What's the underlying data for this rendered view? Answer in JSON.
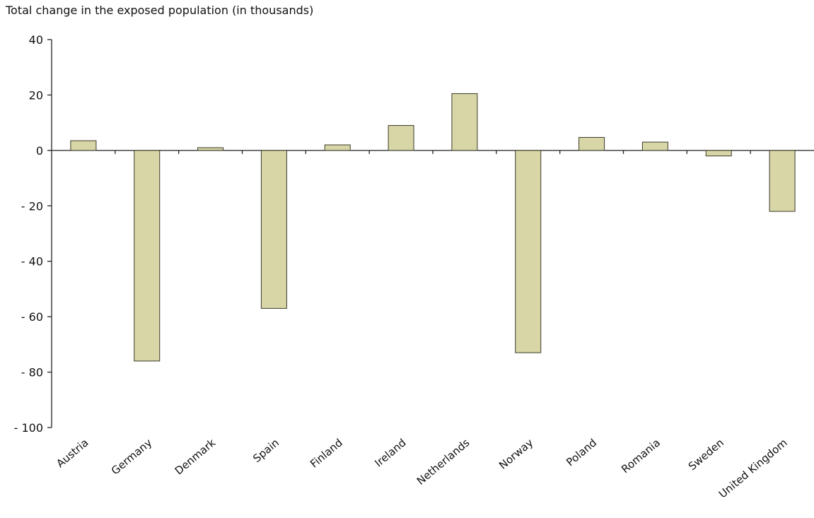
{
  "chart_data": {
    "type": "bar",
    "title": "Total change in the exposed population (in thousands)",
    "xlabel": "",
    "ylabel": "",
    "categories": [
      "Austria",
      "Germany",
      "Denmark",
      "Spain",
      "Finland",
      "Ireland",
      "Netherlands",
      "Norway",
      "Poland",
      "Romania",
      "Sweden",
      "United Kingdom"
    ],
    "values": [
      3.5,
      -76,
      1,
      -57,
      2,
      9,
      20.5,
      -73,
      4.7,
      3,
      -2,
      -22
    ],
    "ylim": [
      -100,
      40
    ],
    "yticks": [
      40,
      20,
      0,
      -20,
      -40,
      -60,
      -80,
      -100
    ],
    "ytick_labels": [
      "40",
      "20",
      "0",
      "- 20",
      "- 40",
      "- 60",
      "- 80",
      "- 100"
    ],
    "bar_color": "#d8d6a6",
    "bar_edge_color": "#3a3a2a",
    "grid": false,
    "legend": "none"
  }
}
